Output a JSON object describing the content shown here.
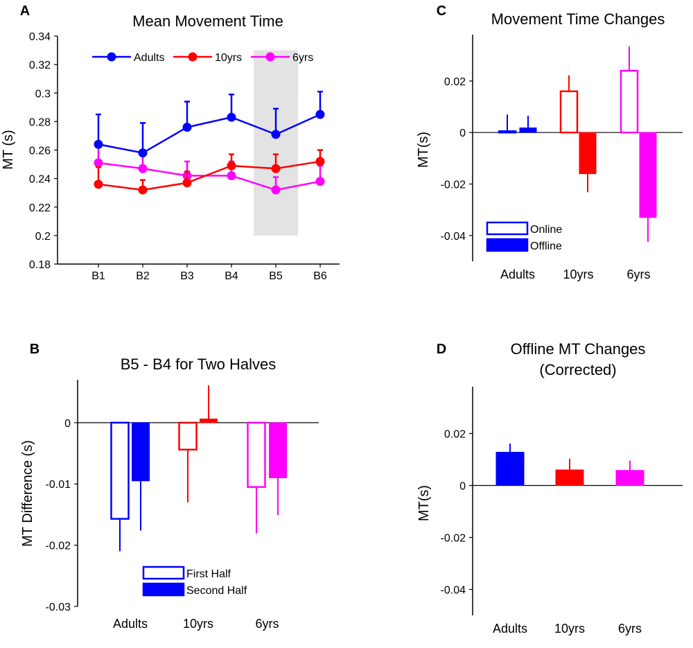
{
  "colors": {
    "adults": "#0000ff",
    "ten": "#ff0000",
    "six": "#ff00ff",
    "shade": "#e3e3e3"
  },
  "chart_data": [
    {
      "panel_letter": "A",
      "type": "line",
      "title": "Mean Movement Time",
      "xlabel": "",
      "ylabel": "MT (s)",
      "categories": [
        "B1",
        "B2",
        "B3",
        "B4",
        "B5",
        "B6"
      ],
      "ylim": [
        0.18,
        0.34
      ],
      "yticks": [
        0.18,
        0.2,
        0.22,
        0.24,
        0.26,
        0.28,
        0.3,
        0.32,
        0.34
      ],
      "ytick_labels": [
        "0.18",
        "0.2",
        "0.22",
        "0.24",
        "0.26",
        "0.28",
        "0.3",
        "0.32",
        "0.34"
      ],
      "shaded_block": {
        "category": "B5",
        "ylim": [
          0.2,
          0.33
        ]
      },
      "legend_position": "top",
      "series": [
        {
          "name": "Adults",
          "color_key": "adults",
          "values": [
            0.264,
            0.258,
            0.276,
            0.283,
            0.271,
            0.285
          ],
          "errors": [
            0.021,
            0.021,
            0.018,
            0.016,
            0.018,
            0.016
          ]
        },
        {
          "name": "10yrs",
          "color_key": "ten",
          "values": [
            0.236,
            0.232,
            0.237,
            0.249,
            0.247,
            0.252
          ],
          "errors": [
            0.012,
            0.007,
            0.008,
            0.008,
            0.01,
            0.008
          ]
        },
        {
          "name": "6yrs",
          "color_key": "six",
          "values": [
            0.251,
            0.247,
            0.242,
            0.242,
            0.232,
            0.238
          ],
          "errors": [
            0.012,
            0.01,
            0.01,
            0.01,
            0.009,
            0.011
          ]
        }
      ]
    },
    {
      "panel_letter": "B",
      "type": "bar",
      "title": "B5 - B4 for Two Halves",
      "xlabel": "",
      "ylabel": "MT Difference (s)",
      "categories": [
        "Adults",
        "10yrs",
        "6yrs"
      ],
      "category_color_keys": [
        "adults",
        "ten",
        "six"
      ],
      "ylim": [
        -0.03,
        0.007
      ],
      "yticks": [
        -0.03,
        -0.02,
        -0.01,
        0
      ],
      "ytick_labels": [
        "-0.03",
        "-0.02",
        "-0.01",
        "0"
      ],
      "legend_position": "bottom",
      "series": [
        {
          "name": "First Half",
          "fill": "open",
          "values": [
            -0.0157,
            -0.0044,
            -0.0105
          ],
          "errors": [
            0.0053,
            0.0086,
            0.0076
          ]
        },
        {
          "name": "Second Half",
          "fill": "solid",
          "values": [
            -0.0095,
            0.0006,
            -0.009
          ],
          "errors": [
            0.0081,
            0.0055,
            0.0061
          ]
        }
      ]
    },
    {
      "panel_letter": "C",
      "type": "bar",
      "title": "Movement Time Changes",
      "xlabel": "",
      "ylabel": "MT(s)",
      "categories": [
        "Adults",
        "10yrs",
        "6yrs"
      ],
      "category_color_keys": [
        "adults",
        "ten",
        "six"
      ],
      "ylim": [
        -0.05,
        0.038
      ],
      "yticks": [
        -0.04,
        -0.02,
        0,
        0.02
      ],
      "ytick_labels": [
        "-0.04",
        "-0.02",
        "0",
        "0.02"
      ],
      "legend_position": "bottom-left",
      "series": [
        {
          "name": "Online",
          "fill": "open",
          "values": [
            0.0005,
            0.016,
            0.024
          ],
          "errors": [
            0.0065,
            0.0062,
            0.0095
          ]
        },
        {
          "name": "Offline",
          "fill": "solid",
          "values": [
            0.0018,
            -0.016,
            -0.033
          ],
          "errors": [
            0.0047,
            0.0072,
            0.0095
          ]
        }
      ]
    },
    {
      "panel_letter": "D",
      "type": "bar",
      "title": "Offline MT Changes",
      "subtitle": "(Corrected)",
      "xlabel": "",
      "ylabel": "MT(s)",
      "categories": [
        "Adults",
        "10yrs",
        "6yrs"
      ],
      "category_color_keys": [
        "adults",
        "ten",
        "six"
      ],
      "ylim": [
        -0.05,
        0.038
      ],
      "yticks": [
        -0.04,
        -0.02,
        0,
        0.02
      ],
      "ytick_labels": [
        "-0.04",
        "-0.02",
        "0",
        "0.02"
      ],
      "series": [
        {
          "name": "Corrected",
          "fill": "solid",
          "values": [
            0.0128,
            0.006,
            0.0058
          ],
          "errors": [
            0.0033,
            0.0043,
            0.0038
          ]
        }
      ]
    }
  ]
}
